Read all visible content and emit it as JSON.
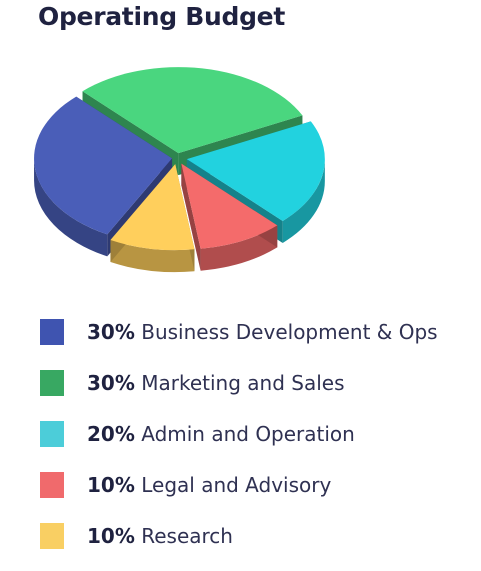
{
  "chart_data": {
    "type": "pie",
    "title": "Operating Budget",
    "slices": [
      {
        "label": "Business Development & Ops",
        "pct_label": "30%",
        "value": 30,
        "color": "#4a5eb8",
        "swatch": "#3f54b0"
      },
      {
        "label": "Marketing and Sales",
        "pct_label": "30%",
        "value": 30,
        "color": "#4ad67f",
        "swatch": "#38a862"
      },
      {
        "label": "Admin and Operation",
        "pct_label": "20%",
        "value": 20,
        "color": "#22d2df",
        "swatch": "#4ccdd9"
      },
      {
        "label": "Legal and Advisory",
        "pct_label": "10%",
        "value": 10,
        "color": "#f46b6b",
        "swatch": "#f06a6c"
      },
      {
        "label": "Research",
        "pct_label": "10%",
        "value": 10,
        "color": "#ffcf5c",
        "swatch": "#f9cf63"
      }
    ]
  }
}
